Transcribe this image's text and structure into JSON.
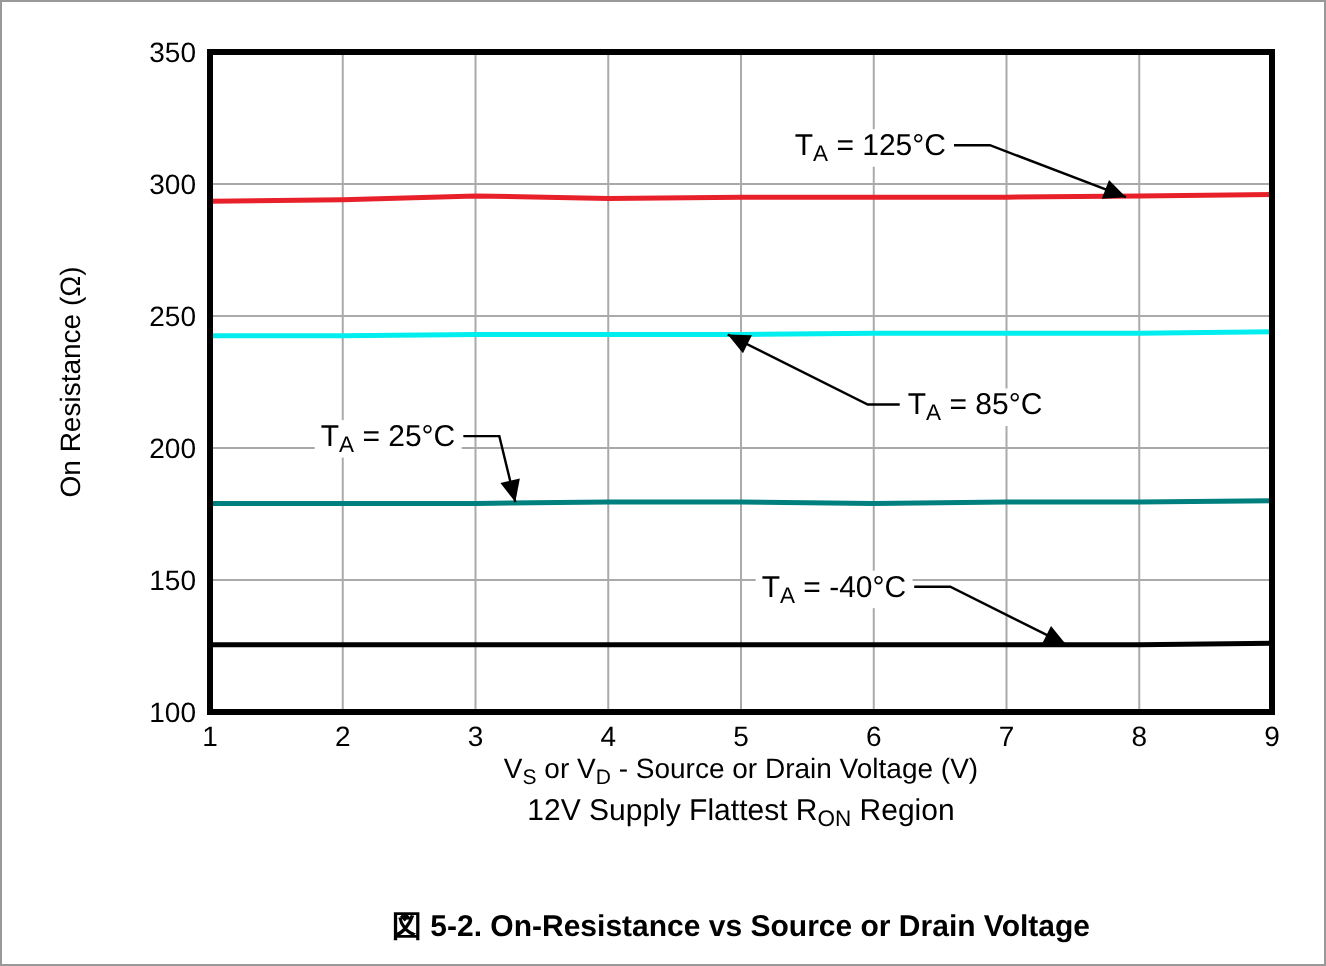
{
  "chart_data": {
    "type": "line",
    "xlabel": "V$_{S}$ or V$_{D}$ - Source or Drain Voltage (V)",
    "ylabel": "On Resistance (Ω)",
    "x": [
      1,
      2,
      3,
      4,
      5,
      6,
      7,
      8,
      9
    ],
    "series": [
      {
        "color": "#e8202a",
        "values": [
          293.5,
          294,
          295.5,
          294.5,
          295,
          295,
          295,
          295.5,
          296
        ]
      },
      {
        "color": "#00eeee",
        "values": [
          242.5,
          242.5,
          243,
          243,
          243,
          243.5,
          243.5,
          243.5,
          244
        ]
      },
      {
        "color": "#007f7f",
        "values": [
          179,
          179,
          179,
          179.5,
          179.5,
          179,
          179.5,
          179.5,
          180
        ]
      },
      {
        "color": "#000000",
        "values": [
          125.5,
          125.5,
          125.5,
          125.5,
          125.5,
          125.5,
          125.5,
          125.5,
          126
        ]
      }
    ],
    "xlim": [
      1,
      9
    ],
    "ylim": [
      100,
      350
    ],
    "xticks": [
      1,
      2,
      3,
      4,
      5,
      6,
      7,
      8,
      9
    ],
    "yticks": [
      100,
      150,
      200,
      250,
      300,
      350
    ],
    "grid": true,
    "marker": "none",
    "line_style": "solid",
    "annotations": [
      {
        "text": "T$_{A}$ = 125°C",
        "x": 7.9,
        "y": 295
      },
      {
        "text": "T$_{A}$ = 85°C",
        "x": 4.9,
        "y": 243
      },
      {
        "text": "T$_{A}$ = 25°C",
        "x": 3.3,
        "y": 179.5
      },
      {
        "text": "T$_{A}$ = -40°C",
        "x": 7.45,
        "y": 125.5
      },
      "12V Supply Flattest R$_{ON}$ Region",
      "**図 5-2. On-Resistance vs Source or Drain Voltage**"
    ]
  }
}
